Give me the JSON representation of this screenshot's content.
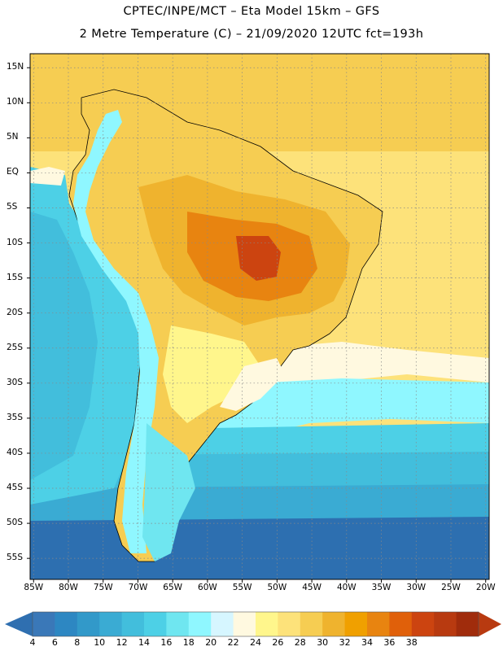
{
  "title": {
    "line1": "CPTEC/INPE/MCT –  Eta Model 15km – GFS",
    "line2": "2 Metre Temperature (C) – 21/09/2020 12UTC fct=193h"
  },
  "map": {
    "lat_labels": [
      "15N",
      "10N",
      "5N",
      "EQ",
      "5S",
      "10S",
      "15S",
      "20S",
      "25S",
      "30S",
      "35S",
      "40S",
      "45S",
      "50S",
      "55S"
    ],
    "lon_labels": [
      "85W",
      "80W",
      "75W",
      "70W",
      "65W",
      "60W",
      "55W",
      "50W",
      "45W",
      "40W",
      "35W",
      "30W",
      "25W",
      "20W"
    ],
    "lat_values": [
      15,
      10,
      5,
      0,
      -5,
      -10,
      -15,
      -20,
      -25,
      -30,
      -35,
      -40,
      -45,
      -50,
      -55
    ],
    "lon_values": [
      -85,
      -80,
      -75,
      -70,
      -65,
      -60,
      -55,
      -50,
      -45,
      -40,
      -35,
      -30,
      -25,
      -20
    ],
    "extent": {
      "lon_min": -85.5,
      "lon_max": -19.5,
      "lat_min": -58,
      "lat_max": 17
    },
    "background_color": "#fde27a",
    "land_outline_color": "#000000",
    "grid_color": "#888888"
  },
  "colorbar": {
    "ticks": [
      "4",
      "6",
      "8",
      "10",
      "12",
      "14",
      "16",
      "18",
      "20",
      "22",
      "24",
      "26",
      "28",
      "30",
      "32",
      "34",
      "36",
      "38"
    ],
    "colors": [
      "#3a78b8",
      "#2d87c2",
      "#3299c9",
      "#3aabd3",
      "#42bedc",
      "#4dd0e6",
      "#6fe6f0",
      "#8ff7ff",
      "#d6f6ff",
      "#fff9e0",
      "#fff68c",
      "#fde27a",
      "#f6cd52",
      "#efb32e",
      "#f0a000",
      "#e88410",
      "#e0600a",
      "#cc4410",
      "#b83a10",
      "#a02c0c"
    ],
    "low_arrow_color": "#2f6fb0",
    "high_arrow_color": "#b83a10"
  }
}
